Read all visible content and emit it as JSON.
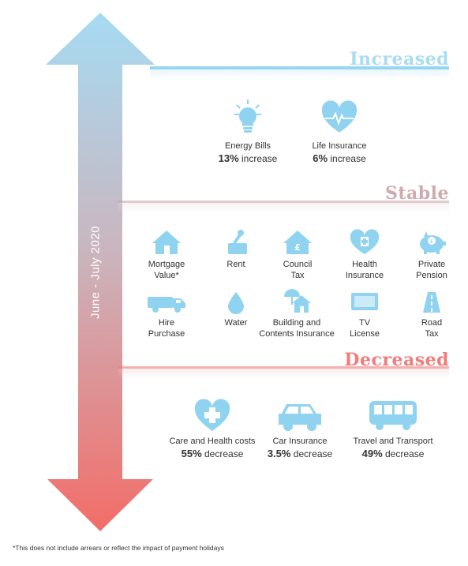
{
  "colors": {
    "increased": "#a9dcf3",
    "stable": "#cfaab0",
    "decreased": "#f07d7a",
    "icon": "#8fd3f0"
  },
  "arrow": {
    "label": "June - July 2020"
  },
  "sections": {
    "increased": {
      "title": "Increased",
      "items": [
        {
          "icon": "lightbulb-icon",
          "label": "Energy Bills",
          "value": "13%",
          "change": "increase"
        },
        {
          "icon": "heart-pulse-icon",
          "label": "Life Insurance",
          "value": "6%",
          "change": "increase"
        }
      ]
    },
    "stable": {
      "title": "Stable",
      "items": [
        {
          "icon": "house-icon",
          "line1": "Mortgage",
          "line2": "Value*"
        },
        {
          "icon": "rent-hand-icon",
          "line1": "Rent",
          "line2": ""
        },
        {
          "icon": "council-tax-house-icon",
          "line1": "Council",
          "line2": "Tax"
        },
        {
          "icon": "health-heart-icon",
          "line1": "Health",
          "line2": "Insurance"
        },
        {
          "icon": "piggy-bank-icon",
          "line1": "Private",
          "line2": "Pension"
        },
        {
          "icon": "truck-icon",
          "line1": "Hire",
          "line2": "Purchase"
        },
        {
          "icon": "water-drop-icon",
          "line1": "Water",
          "line2": ""
        },
        {
          "icon": "house-umbrella-icon",
          "line1": "Building and",
          "line2": "Contents Insurance"
        },
        {
          "icon": "tv-icon",
          "line1": "TV",
          "line2": "License"
        },
        {
          "icon": "road-icon",
          "line1": "Road",
          "line2": "Tax"
        }
      ]
    },
    "decreased": {
      "title": "Decreased",
      "items": [
        {
          "icon": "heart-cross-icon",
          "label": "Care and Health costs",
          "value": "55%",
          "change": "decrease"
        },
        {
          "icon": "car-icon",
          "label": "Car Insurance",
          "value": "3.5%",
          "change": "decrease"
        },
        {
          "icon": "bus-icon",
          "label": "Travel and Transport",
          "value": "49%",
          "change": "decrease"
        }
      ]
    }
  },
  "footnote": "*This does not include arrears or reflect the impact of payment holidays"
}
